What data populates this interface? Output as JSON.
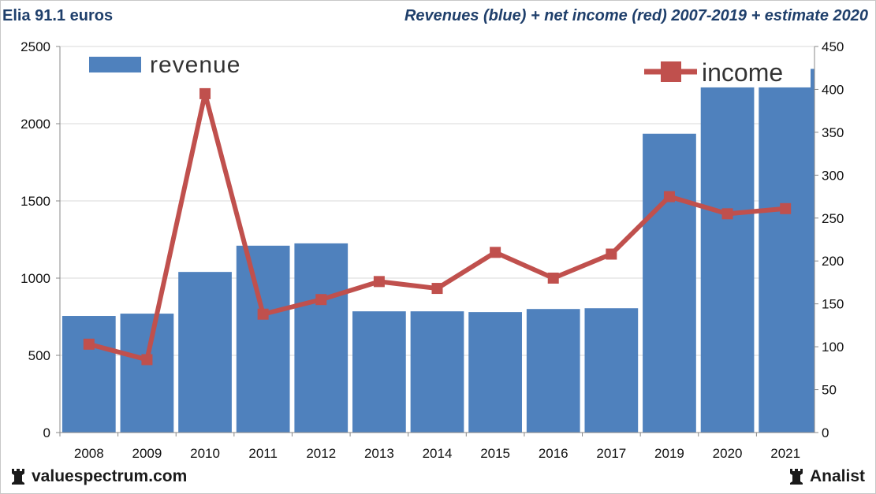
{
  "header": {
    "left_title": "Elia 91.1 euros",
    "right_title": "Revenues (blue) + net income (red) 2007-2019 + estimate 2020"
  },
  "footer": {
    "site": "valuespectrum.com",
    "brand": "Analist",
    "icon": "rook-chess-icon"
  },
  "colors": {
    "bar": "#4f81bd",
    "line": "#c0504d",
    "grid": "#d9d9d9",
    "title": "#1f3f6b"
  },
  "chart_data": {
    "type": "bar+line",
    "categories": [
      "2008",
      "2009",
      "2010",
      "2011",
      "2012",
      "2013",
      "2014",
      "2015",
      "2016",
      "2017",
      "2019",
      "2020",
      "2021"
    ],
    "series": [
      {
        "name": "revenue",
        "type": "bar",
        "axis": "left",
        "values": [
          755,
          770,
          1040,
          1210,
          1225,
          785,
          785,
          780,
          800,
          805,
          1935,
          2235,
          2235
        ]
      },
      {
        "name": "income",
        "type": "line",
        "axis": "right",
        "values": [
          103,
          85,
          395,
          138,
          155,
          176,
          168,
          210,
          180,
          208,
          275,
          255,
          261
        ]
      }
    ],
    "extra_bar_partial": 2355,
    "y_left": {
      "min": 0,
      "max": 2500,
      "ticks": [
        0,
        500,
        1000,
        1500,
        2000,
        2500
      ]
    },
    "y_right": {
      "min": 0,
      "max": 450,
      "ticks": [
        0,
        50,
        100,
        150,
        200,
        250,
        300,
        350,
        400,
        450
      ]
    },
    "legend": [
      {
        "label": "revenue",
        "kind": "bar",
        "position": "top-left"
      },
      {
        "label": "income",
        "kind": "line",
        "position": "top-right"
      }
    ],
    "grid": true
  }
}
